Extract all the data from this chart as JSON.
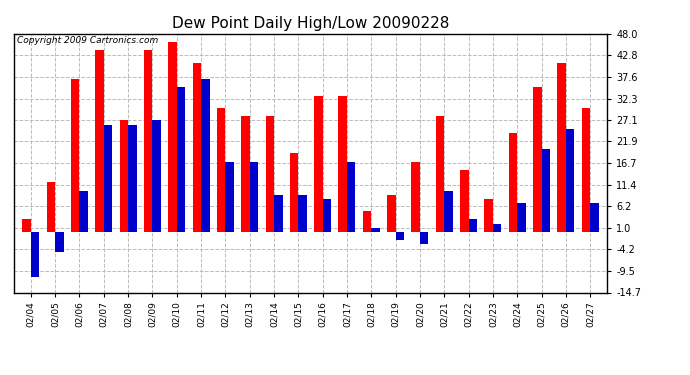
{
  "title": "Dew Point Daily High/Low 20090228",
  "copyright": "Copyright 2009 Cartronics.com",
  "dates": [
    "02/04",
    "02/05",
    "02/06",
    "02/07",
    "02/08",
    "02/09",
    "02/10",
    "02/11",
    "02/12",
    "02/13",
    "02/14",
    "02/15",
    "02/16",
    "02/17",
    "02/18",
    "02/19",
    "02/20",
    "02/21",
    "02/22",
    "02/23",
    "02/24",
    "02/25",
    "02/26",
    "02/27"
  ],
  "highs": [
    3.0,
    12.0,
    37.0,
    44.0,
    27.0,
    44.0,
    46.0,
    41.0,
    30.0,
    28.0,
    28.0,
    19.0,
    33.0,
    33.0,
    5.0,
    9.0,
    17.0,
    28.0,
    15.0,
    8.0,
    24.0,
    35.0,
    41.0,
    30.0
  ],
  "lows": [
    -11.0,
    -5.0,
    10.0,
    26.0,
    26.0,
    27.0,
    35.0,
    37.0,
    17.0,
    17.0,
    9.0,
    9.0,
    8.0,
    17.0,
    1.0,
    -2.0,
    -3.0,
    10.0,
    3.0,
    2.0,
    7.0,
    20.0,
    25.0,
    7.0
  ],
  "high_color": "#ff0000",
  "low_color": "#0000cc",
  "bg_color": "#ffffff",
  "grid_color": "#bbbbbb",
  "ylim": [
    -14.7,
    48.0
  ],
  "yticks": [
    48.0,
    42.8,
    37.6,
    32.3,
    27.1,
    21.9,
    16.7,
    11.4,
    6.2,
    1.0,
    -4.2,
    -9.5,
    -14.7
  ],
  "title_fontsize": 11,
  "copyright_fontsize": 6.5,
  "bar_width": 0.35
}
